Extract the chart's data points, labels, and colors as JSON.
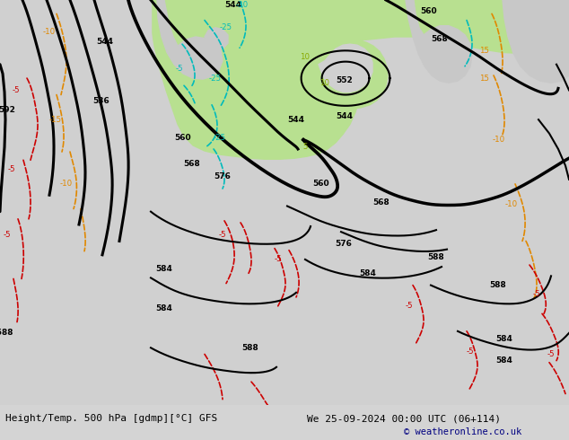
{
  "title_left": "Height/Temp. 500 hPa [gdmp][°C] GFS",
  "title_right": "We 25-09-2024 00:00 UTC (06+114)",
  "copyright": "© weatheronline.co.uk",
  "bg_color": "#d4d4d4",
  "green_fill": "#b8e090",
  "fig_width": 6.34,
  "fig_height": 4.9,
  "black_contour_lw": 2.2,
  "cyan_color": "#00bbbb",
  "orange_color": "#e08800",
  "red_color": "#cc0000",
  "olive_color": "#88aa00",
  "navy_color": "#000080"
}
